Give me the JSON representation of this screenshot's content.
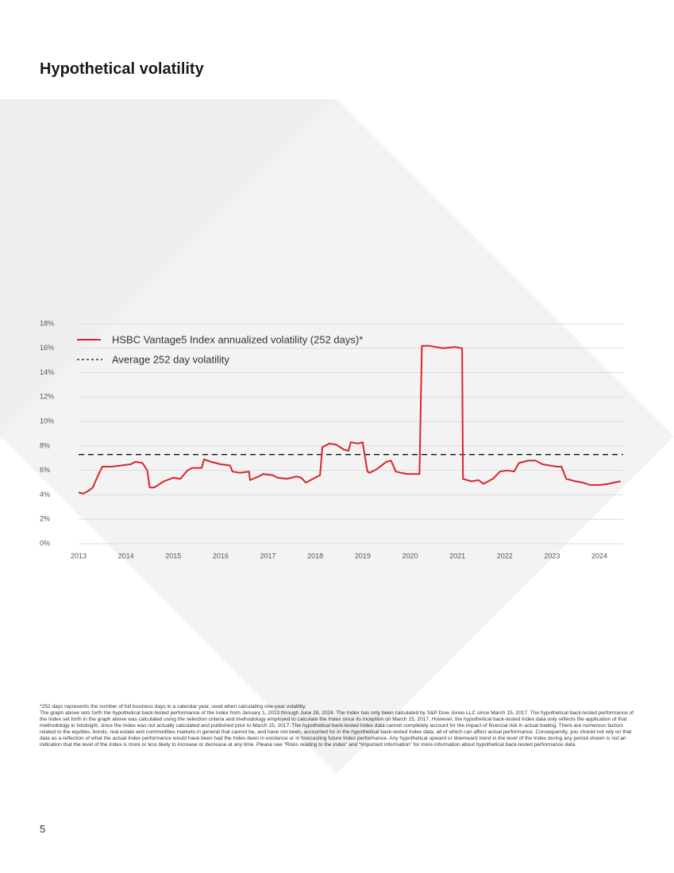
{
  "title": "Hypothetical volatility",
  "chart_data": {
    "type": "line",
    "xlim": [
      2013,
      2024.5
    ],
    "xticks": [
      2013,
      2014,
      2015,
      2016,
      2017,
      2018,
      2019,
      2020,
      2021,
      2022,
      2023,
      2024
    ],
    "ylim": [
      0,
      18
    ],
    "yticks": [
      {
        "value": 0,
        "label": "0%"
      },
      {
        "value": 2,
        "label": "2%"
      },
      {
        "value": 4,
        "label": "4%"
      },
      {
        "value": 6,
        "label": "6%"
      },
      {
        "value": 8,
        "label": "8%"
      },
      {
        "value": 10,
        "label": "10%"
      },
      {
        "value": 12,
        "label": "12%"
      },
      {
        "value": 14,
        "label": "14%"
      },
      {
        "value": 16,
        "label": "16%"
      },
      {
        "value": 18,
        "label": "18%"
      }
    ],
    "grid": true,
    "legend": "upper left",
    "series": [
      {
        "name": "HSBC Vantage5 Index annualized volatility (252 days)*",
        "color": "#d7262e",
        "dashed": false,
        "x": [
          2013.0,
          2013.1,
          2013.2,
          2013.3,
          2013.4,
          2013.5,
          2013.7,
          2013.9,
          2014.1,
          2014.2,
          2014.35,
          2014.45,
          2014.5,
          2014.6,
          2014.8,
          2015.0,
          2015.15,
          2015.3,
          2015.4,
          2015.6,
          2015.65,
          2015.8,
          2016.0,
          2016.2,
          2016.25,
          2016.4,
          2016.6,
          2016.62,
          2016.8,
          2016.9,
          2017.1,
          2017.2,
          2017.4,
          2017.6,
          2017.7,
          2017.8,
          2017.95,
          2018.1,
          2018.15,
          2018.3,
          2018.45,
          2018.6,
          2018.7,
          2018.75,
          2018.9,
          2019.0,
          2019.1,
          2019.15,
          2019.3,
          2019.5,
          2019.6,
          2019.7,
          2019.8,
          2019.95,
          2020.2,
          2020.25,
          2020.4,
          2020.7,
          2020.95,
          2021.1,
          2021.12,
          2021.3,
          2021.45,
          2021.55,
          2021.75,
          2021.9,
          2022.05,
          2022.2,
          2022.3,
          2022.5,
          2022.65,
          2022.8,
          2022.95,
          2023.1,
          2023.2,
          2023.3,
          2023.5,
          2023.65,
          2023.8,
          2024.0,
          2024.2,
          2024.3,
          2024.45
        ],
        "values": [
          4.2,
          4.1,
          4.3,
          4.6,
          5.5,
          6.3,
          6.3,
          6.4,
          6.5,
          6.7,
          6.6,
          6.0,
          4.6,
          4.6,
          5.1,
          5.4,
          5.3,
          6.0,
          6.2,
          6.2,
          6.9,
          6.7,
          6.5,
          6.4,
          5.9,
          5.8,
          5.9,
          5.2,
          5.5,
          5.7,
          5.6,
          5.4,
          5.3,
          5.5,
          5.4,
          5.0,
          5.3,
          5.6,
          7.9,
          8.2,
          8.1,
          7.7,
          7.6,
          8.3,
          8.2,
          8.3,
          5.9,
          5.8,
          6.1,
          6.7,
          6.8,
          5.9,
          5.8,
          5.7,
          5.7,
          16.2,
          16.2,
          16.0,
          16.1,
          16.0,
          5.3,
          5.1,
          5.2,
          4.9,
          5.3,
          5.9,
          6.0,
          5.9,
          6.6,
          6.8,
          6.8,
          6.5,
          6.4,
          6.3,
          6.3,
          5.3,
          5.1,
          5.0,
          4.8,
          4.8,
          4.9,
          5.0,
          5.1
        ]
      },
      {
        "name": "Average 252 day volatility",
        "color": "#111111",
        "dashed": true,
        "x": [
          2013.0,
          2024.5
        ],
        "values": [
          7.3,
          7.3
        ]
      }
    ]
  },
  "footnote": [
    "*252 days represents the number of full business days in a calendar year, used when calculating one-year volatility.",
    "The graph above sets forth the hypothetical back-tested performance of the Index from January 1, 2013 through June 28, 2024. The Index has only been calculated by S&P Dow Jones LLC since March 15, 2017. The hypothetical back-tested performance of the Index set forth in the graph above was calculated using the selection criteria and methodology employed to calculate the Index since its inception on March 15, 2017. However, the hypothetical back-tested Index data only reflects the application of that methodology in hindsight, since the Index was not actually calculated and published prior to March 15, 2017. The hypothetical back-tested Index data cannot completely account for the impact of financial risk in actual trading. There are numerous factors related to the equities, bonds, real estate and commodities markets in general that cannot be, and have not been, accounted for in the hypothetical back-tested Index data, all of which can affect actual performance. Consequently, you should not rely on that data as a reflection of what the actual Index performance would have been had the Index been in existence or in forecasting future Index performance. Any hypothetical upward or downward trend in the level of the Index during any period shown is not an indication that the level of the Index is more or less likely to increase or decrease at any time. Please see “Risks relating to the index” and “Important information” for more information about hypothetical back-tested performance data."
  ],
  "page_number": "5"
}
